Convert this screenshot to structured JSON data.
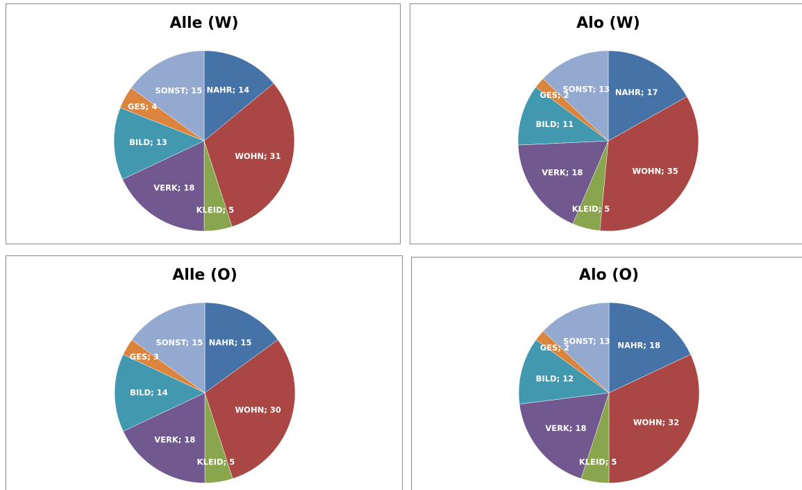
{
  "chart_data": [
    {
      "type": "pie",
      "title": "Alle (W)",
      "values": [
        14,
        31,
        5,
        18,
        13,
        4,
        15
      ],
      "value_labels": [
        "NAHR; 14",
        "WOHN; 31",
        "KLEID; 5",
        "VERK; 18",
        "BILD; 13",
        "GES; 4",
        "SONST; 15"
      ],
      "colors": [
        "#4572a7",
        "#aa4643",
        "#89a54e",
        "#71588f",
        "#4198af",
        "#db843d",
        "#93a9cf"
      ]
    },
    {
      "type": "pie",
      "title": "Alo (W)",
      "values": [
        17,
        35,
        5,
        18,
        11,
        2,
        13
      ],
      "value_labels": [
        "NAHR; 17",
        "WOHN; 35",
        "KLEID; 5",
        "VERK; 18",
        "BILD; 11",
        "GES; 2",
        "SONST; 13"
      ],
      "colors": [
        "#4572a7",
        "#aa4643",
        "#89a54e",
        "#71588f",
        "#4198af",
        "#db843d",
        "#93a9cf"
      ]
    },
    {
      "type": "pie",
      "title": "Alle (O)",
      "values": [
        15,
        30,
        5,
        18,
        14,
        3,
        15
      ],
      "value_labels": [
        "NAHR; 15",
        "WOHN; 30",
        "KLEID; 5",
        "VERK; 18",
        "BILD; 14",
        "GES; 3",
        "SONST; 15"
      ],
      "colors": [
        "#4572a7",
        "#aa4643",
        "#89a54e",
        "#71588f",
        "#4198af",
        "#db843d",
        "#93a9cf"
      ]
    },
    {
      "type": "pie",
      "title": "Alo (O)",
      "values": [
        18,
        32,
        5,
        18,
        12,
        2,
        13
      ],
      "value_labels": [
        "NAHR; 18",
        "WOHN; 32",
        "KLEID; 5",
        "VERK; 18",
        "BILD; 12",
        "GES; 2",
        "SONST; 13"
      ],
      "colors": [
        "#4572a7",
        "#aa4643",
        "#89a54e",
        "#71588f",
        "#4198af",
        "#db843d",
        "#93a9cf"
      ]
    }
  ]
}
